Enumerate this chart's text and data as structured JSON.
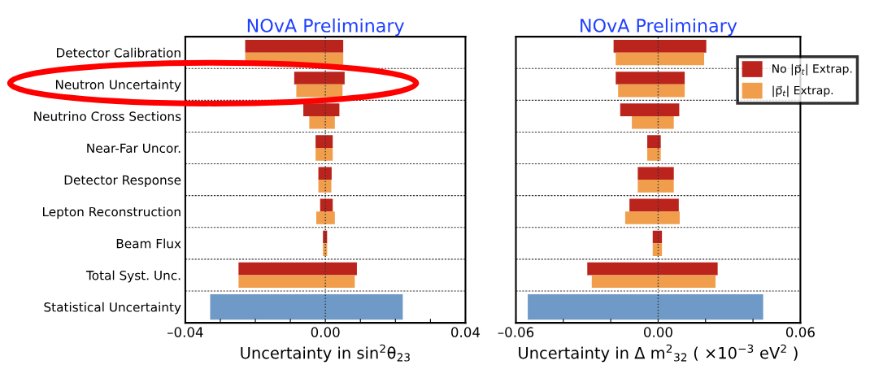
{
  "chart_data": [
    {
      "type": "bar",
      "orientation": "horizontal",
      "title": "NOvA Preliminary",
      "xlabel": "Uncertainty in sin$^{2}$θ$_{23}$",
      "categories": [
        "Detector Calibration",
        "Neutron Uncertainty",
        "Neutrino Cross Sections",
        "Near-Far Uncor.",
        "Detector Response",
        "Lepton Reconstruction",
        "Beam Flux",
        "Total Syst. Unc.",
        "Statistical Uncertainty"
      ],
      "series": [
        {
          "color": "#bb241c",
          "base": [
            -0.0229,
            -0.0089,
            -0.0063,
            -0.0028,
            -0.002,
            -0.0015,
            -0.0007,
            -0.0248,
            null
          ],
          "values": [
            0.028,
            0.0144,
            0.0103,
            0.0049,
            0.0038,
            0.0036,
            0.0012,
            0.0338,
            null
          ]
        },
        {
          "color": "#f19e4c",
          "base": [
            -0.0229,
            -0.0083,
            -0.0046,
            -0.0028,
            -0.002,
            -0.0026,
            -0.0007,
            -0.0248,
            null
          ],
          "values": [
            0.028,
            0.0132,
            0.0073,
            0.0049,
            0.0037,
            0.0053,
            0.0012,
            0.0332,
            null
          ]
        },
        {
          "color": "#6f99c7",
          "base": [
            null,
            null,
            null,
            null,
            null,
            null,
            null,
            null,
            -0.0329
          ],
          "values": [
            null,
            null,
            null,
            null,
            null,
            null,
            null,
            null,
            0.055
          ]
        }
      ],
      "xlim": [
        -0.04,
        0.04
      ],
      "xticks": [
        {
          "value": -0.04,
          "label": "–0.04"
        },
        {
          "value": -0.03,
          "label": null
        },
        {
          "value": -0.02,
          "label": null
        },
        {
          "value": -0.01,
          "label": null
        },
        {
          "value": 0,
          "label": "0.00"
        },
        {
          "value": 0.01,
          "label": null
        },
        {
          "value": 0.02,
          "label": null
        },
        {
          "value": 0.03,
          "label": null
        },
        {
          "value": 0.04,
          "label": "0.04"
        }
      ],
      "ref_lines": [
        {
          "axis": "x",
          "value": 0,
          "line_style": "dotted",
          "color": "#333333"
        }
      ],
      "grid": "y"
    },
    {
      "type": "bar",
      "orientation": "horizontal",
      "title": "NOvA Preliminary",
      "xlabel": "Uncertainty in Δ m$^{2}$$_{32}$ ( ×10$^{−3}$ eV$^{2}$ )",
      "categories": [
        null,
        null,
        null,
        null,
        null,
        null,
        null,
        null,
        null
      ],
      "series": [
        {
          "name": "No |p⃗$_{t}$| Extrap.",
          "color": "#bb241c",
          "base": [
            -0.0188,
            -0.0179,
            -0.016,
            -0.0046,
            -0.0086,
            -0.0121,
            -0.0023,
            -0.0299,
            null
          ],
          "values": [
            0.0391,
            0.0291,
            0.0249,
            0.0057,
            0.0152,
            0.0208,
            0.0039,
            0.055,
            null
          ]
        },
        {
          "name": "|p⃗$_{t}$| Extrap.",
          "color": "#f19e4c",
          "base": [
            -0.0179,
            -0.0169,
            -0.0111,
            -0.0046,
            -0.0086,
            -0.0139,
            -0.0023,
            -0.028,
            null
          ],
          "values": [
            0.0373,
            0.0281,
            0.0177,
            0.0057,
            0.0152,
            0.023,
            0.0039,
            0.0522,
            null
          ]
        },
        {
          "color": "#6f99c7",
          "base": [
            null,
            null,
            null,
            null,
            null,
            null,
            null,
            null,
            -0.055
          ],
          "values": [
            null,
            null,
            null,
            null,
            null,
            null,
            null,
            null,
            0.0993
          ]
        }
      ],
      "xlim": [
        -0.06,
        0.06
      ],
      "xticks": [
        {
          "value": -0.06,
          "label": "–0.06"
        },
        {
          "value": -0.04,
          "label": null
        },
        {
          "value": -0.02,
          "label": null
        },
        {
          "value": 0,
          "label": "0.00"
        },
        {
          "value": 0.02,
          "label": null
        },
        {
          "value": 0.04,
          "label": null
        },
        {
          "value": 0.06,
          "label": "0.06"
        }
      ],
      "ref_lines": [
        {
          "axis": "x",
          "value": 0,
          "line_style": "dotted",
          "color": "#333333"
        }
      ],
      "grid": "y",
      "legend": "top right"
    }
  ]
}
